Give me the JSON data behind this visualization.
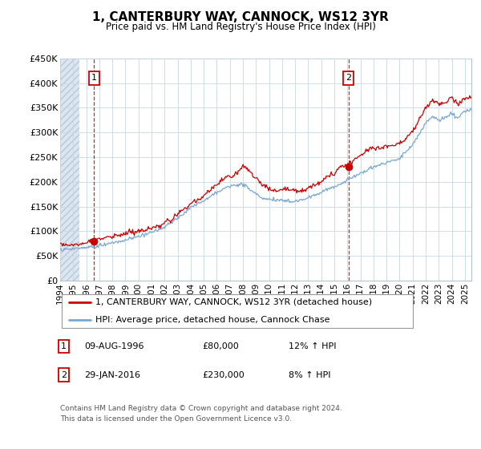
{
  "title": "1, CANTERBURY WAY, CANNOCK, WS12 3YR",
  "subtitle": "Price paid vs. HM Land Registry's House Price Index (HPI)",
  "ylabel_ticks": [
    "£0",
    "£50K",
    "£100K",
    "£150K",
    "£200K",
    "£250K",
    "£300K",
    "£350K",
    "£400K",
    "£450K"
  ],
  "ylim": [
    0,
    450000
  ],
  "xlim_start": 1994.0,
  "xlim_end": 2025.5,
  "xticks": [
    1994,
    1995,
    1996,
    1997,
    1998,
    1999,
    2000,
    2001,
    2002,
    2003,
    2004,
    2005,
    2006,
    2007,
    2008,
    2009,
    2010,
    2011,
    2012,
    2013,
    2014,
    2015,
    2016,
    2017,
    2018,
    2019,
    2020,
    2021,
    2022,
    2023,
    2024,
    2025
  ],
  "sale1_x": 1996.6,
  "sale1_y": 80000,
  "sale1_label": "1",
  "sale2_x": 2016.08,
  "sale2_y": 230000,
  "sale2_label": "2",
  "legend_line1": "1, CANTERBURY WAY, CANNOCK, WS12 3YR (detached house)",
  "legend_line2": "HPI: Average price, detached house, Cannock Chase",
  "row1_num": "1",
  "row1_date": "09-AUG-1996",
  "row1_price": "£80,000",
  "row1_hpi": "12% ↑ HPI",
  "row2_num": "2",
  "row2_date": "29-JAN-2016",
  "row2_price": "£230,000",
  "row2_hpi": "8% ↑ HPI",
  "footer": "Contains HM Land Registry data © Crown copyright and database right 2024.\nThis data is licensed under the Open Government Licence v3.0.",
  "line_color_red": "#cc0000",
  "line_color_blue": "#7aa8d2",
  "grid_color": "#c8d8e8",
  "sale_dot_color": "#cc0000",
  "annotation_box_color": "#cc0000",
  "hatch_region_end": 1995.5,
  "prop_key_x": [
    1994.0,
    1995.0,
    1996.0,
    1996.6,
    1997.5,
    1998.5,
    1999.5,
    2000.5,
    2001.5,
    2002.5,
    2003.5,
    2004.5,
    2005.5,
    2006.5,
    2007.5,
    2008.0,
    2008.5,
    2009.0,
    2009.5,
    2010.0,
    2010.5,
    2011.0,
    2011.5,
    2012.0,
    2012.5,
    2013.0,
    2013.5,
    2014.0,
    2014.5,
    2015.0,
    2015.5,
    2016.08,
    2016.5,
    2017.0,
    2017.5,
    2018.0,
    2018.5,
    2019.0,
    2019.5,
    2020.0,
    2020.5,
    2021.0,
    2021.5,
    2022.0,
    2022.5,
    2023.0,
    2023.5,
    2024.0,
    2024.5,
    2025.0
  ],
  "prop_key_y": [
    72000,
    73000,
    77000,
    80000,
    85000,
    88000,
    95000,
    100000,
    108000,
    120000,
    140000,
    160000,
    180000,
    200000,
    215000,
    230000,
    220000,
    205000,
    195000,
    185000,
    183000,
    185000,
    187000,
    183000,
    180000,
    185000,
    192000,
    198000,
    207000,
    215000,
    225000,
    230000,
    238000,
    248000,
    258000,
    265000,
    262000,
    268000,
    270000,
    275000,
    285000,
    300000,
    320000,
    345000,
    365000,
    355000,
    360000,
    370000,
    355000,
    370000
  ],
  "hpi_key_x": [
    1994.0,
    1995.0,
    1996.0,
    1997.0,
    1998.0,
    1999.0,
    2000.0,
    2001.0,
    2002.0,
    2003.0,
    2004.0,
    2005.0,
    2006.0,
    2007.0,
    2008.0,
    2008.5,
    2009.0,
    2009.5,
    2010.0,
    2011.0,
    2012.0,
    2013.0,
    2014.0,
    2015.0,
    2016.0,
    2017.0,
    2018.0,
    2019.0,
    2020.0,
    2021.0,
    2021.5,
    2022.0,
    2022.5,
    2023.0,
    2023.5,
    2024.0,
    2024.5,
    2025.0
  ],
  "hpi_key_y": [
    63000,
    65000,
    68000,
    72000,
    76000,
    82000,
    90000,
    100000,
    110000,
    128000,
    148000,
    162000,
    178000,
    192000,
    195000,
    186000,
    176000,
    168000,
    165000,
    163000,
    162000,
    168000,
    178000,
    188000,
    202000,
    215000,
    228000,
    238000,
    245000,
    275000,
    295000,
    318000,
    333000,
    325000,
    330000,
    338000,
    328000,
    345000
  ]
}
